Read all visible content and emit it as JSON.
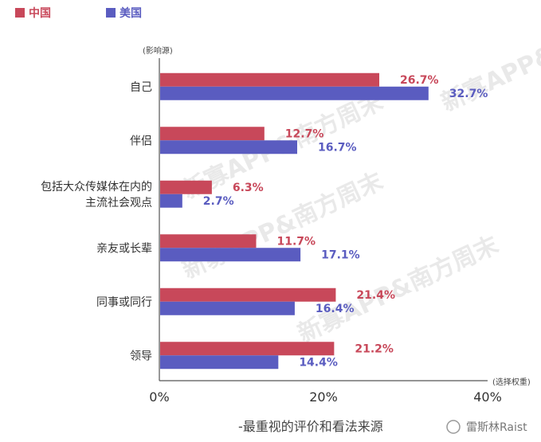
{
  "chart_data": {
    "type": "bar",
    "orientation": "horizontal",
    "categories": [
      "自己",
      "伴侣",
      "包括大众传媒体在内的\n主流社会观点",
      "亲友或长辈",
      "同事或同行",
      "领导"
    ],
    "series": [
      {
        "name": "中国",
        "color": "#c8485a",
        "values": [
          26.7,
          12.7,
          6.3,
          11.7,
          21.4,
          21.2
        ]
      },
      {
        "name": "美国",
        "color": "#5a5cc0",
        "values": [
          32.7,
          16.7,
          2.7,
          17.1,
          16.4,
          14.4
        ]
      }
    ],
    "xlim": [
      0,
      40
    ],
    "xticks": [
      "0%",
      "20%",
      "40%"
    ],
    "y_axis_title": "(影响源)",
    "x_axis_title": "(选择权重)",
    "value_suffix": "%",
    "legend_position": "top-left",
    "grid": false
  },
  "caption": "-最重视的评价和看法来源",
  "credit": "雷斯林Raist",
  "watermark": "新寡APP&南方周末"
}
